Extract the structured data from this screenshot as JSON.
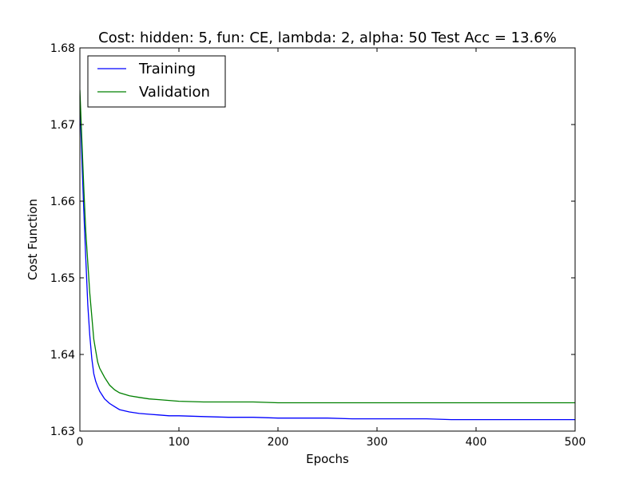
{
  "chart_data": {
    "type": "line",
    "title": "Cost: hidden: 5, fun: CE, lambda: 2, alpha: 50  Test Acc = 13.6%",
    "xlabel": "Epochs",
    "ylabel": "Cost Function",
    "xlim": [
      0,
      500
    ],
    "ylim": [
      1.63,
      1.68
    ],
    "xticks": [
      0,
      100,
      200,
      300,
      400,
      500
    ],
    "xtick_labels": [
      "0",
      "100",
      "200",
      "300",
      "400",
      "500"
    ],
    "yticks": [
      1.63,
      1.64,
      1.65,
      1.66,
      1.67,
      1.68
    ],
    "ytick_labels": [
      "1.63",
      "1.64",
      "1.65",
      "1.66",
      "1.67",
      "1.68"
    ],
    "grid": false,
    "legend_position": "top-left",
    "series": [
      {
        "name": "Training",
        "color": "#0000ff",
        "x": [
          0,
          2,
          4,
          6,
          8,
          10,
          12,
          14,
          16,
          18,
          20,
          25,
          30,
          35,
          40,
          50,
          60,
          70,
          80,
          90,
          100,
          125,
          150,
          175,
          200,
          225,
          250,
          275,
          300,
          325,
          350,
          375,
          400,
          425,
          450,
          475,
          500
        ],
        "values": [
          1.6735,
          1.6655,
          1.6585,
          1.6525,
          1.6465,
          1.6425,
          1.6395,
          1.6375,
          1.6365,
          1.6358,
          1.6352,
          1.6342,
          1.6336,
          1.6332,
          1.6328,
          1.6325,
          1.6323,
          1.6322,
          1.6321,
          1.632,
          1.632,
          1.6319,
          1.6318,
          1.6318,
          1.6317,
          1.6317,
          1.6317,
          1.6316,
          1.6316,
          1.6316,
          1.6316,
          1.6315,
          1.6315,
          1.6315,
          1.6315,
          1.6315,
          1.6315
        ]
      },
      {
        "name": "Validation",
        "color": "#008000",
        "x": [
          0,
          2,
          4,
          6,
          8,
          10,
          12,
          14,
          16,
          18,
          20,
          25,
          30,
          35,
          40,
          50,
          60,
          70,
          80,
          90,
          100,
          125,
          150,
          175,
          200,
          225,
          250,
          275,
          300,
          325,
          350,
          375,
          400,
          425,
          450,
          475,
          500
        ],
        "values": [
          1.6745,
          1.668,
          1.6615,
          1.656,
          1.652,
          1.648,
          1.645,
          1.642,
          1.6405,
          1.639,
          1.6382,
          1.637,
          1.636,
          1.6354,
          1.635,
          1.6346,
          1.6344,
          1.6342,
          1.6341,
          1.634,
          1.6339,
          1.6338,
          1.6338,
          1.6338,
          1.6337,
          1.6337,
          1.6337,
          1.6337,
          1.6337,
          1.6337,
          1.6337,
          1.6337,
          1.6337,
          1.6337,
          1.6337,
          1.6337,
          1.6337
        ]
      }
    ]
  }
}
